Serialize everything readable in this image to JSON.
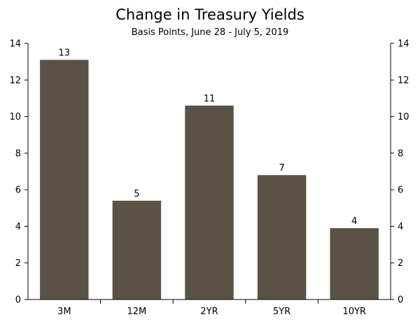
{
  "chart_data": {
    "type": "bar",
    "title": "Change in Treasury Yields",
    "subtitle": "Basis Points, June 28 - July 5, 2019",
    "categories": [
      "3M",
      "12M",
      "2YR",
      "5YR",
      "10YR"
    ],
    "values": [
      13.1,
      5.4,
      10.6,
      6.8,
      3.9
    ],
    "data_labels": [
      "13",
      "5",
      "11",
      "7",
      "4"
    ],
    "ylim": [
      0,
      14
    ],
    "yticks": [
      "0",
      "2",
      "4",
      "6",
      "8",
      "10",
      "12",
      "14"
    ],
    "xlabel": "",
    "ylabel": "",
    "grid": false,
    "bar_color": "#5b5246",
    "dual_y_axis": true
  }
}
